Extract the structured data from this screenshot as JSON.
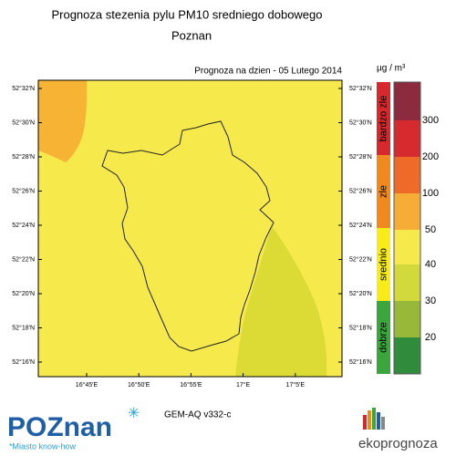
{
  "header": {
    "title": "Prognoza stezenia pylu PM10 sredniego dobowego",
    "subtitle": "Poznan"
  },
  "map": {
    "date_label": "Prognoza na dzien -  05 Lutego 2014",
    "lat_labels": [
      "52°32'N",
      "52°30'N",
      "52°28'N",
      "52°26'N",
      "52°24'N",
      "52°22'N",
      "52°20'N",
      "52°18'N",
      "52°16'N"
    ],
    "lon_labels": [
      "16°45'E",
      "16°50'E",
      "16°55'E",
      "17°E",
      "17°5'E"
    ]
  },
  "legend": {
    "unit": "µg / m³",
    "categories": [
      "bardzo zle",
      "zle",
      "srednio",
      "dobrze"
    ],
    "ticks": [
      "300",
      "200",
      "100",
      "50",
      "40",
      "30",
      "20"
    ]
  },
  "footer": {
    "model": "GEM-AQ v332-c",
    "logo": "POZnan",
    "tagline": "*Miasto know-how",
    "brand": "ekoprognoza"
  }
}
